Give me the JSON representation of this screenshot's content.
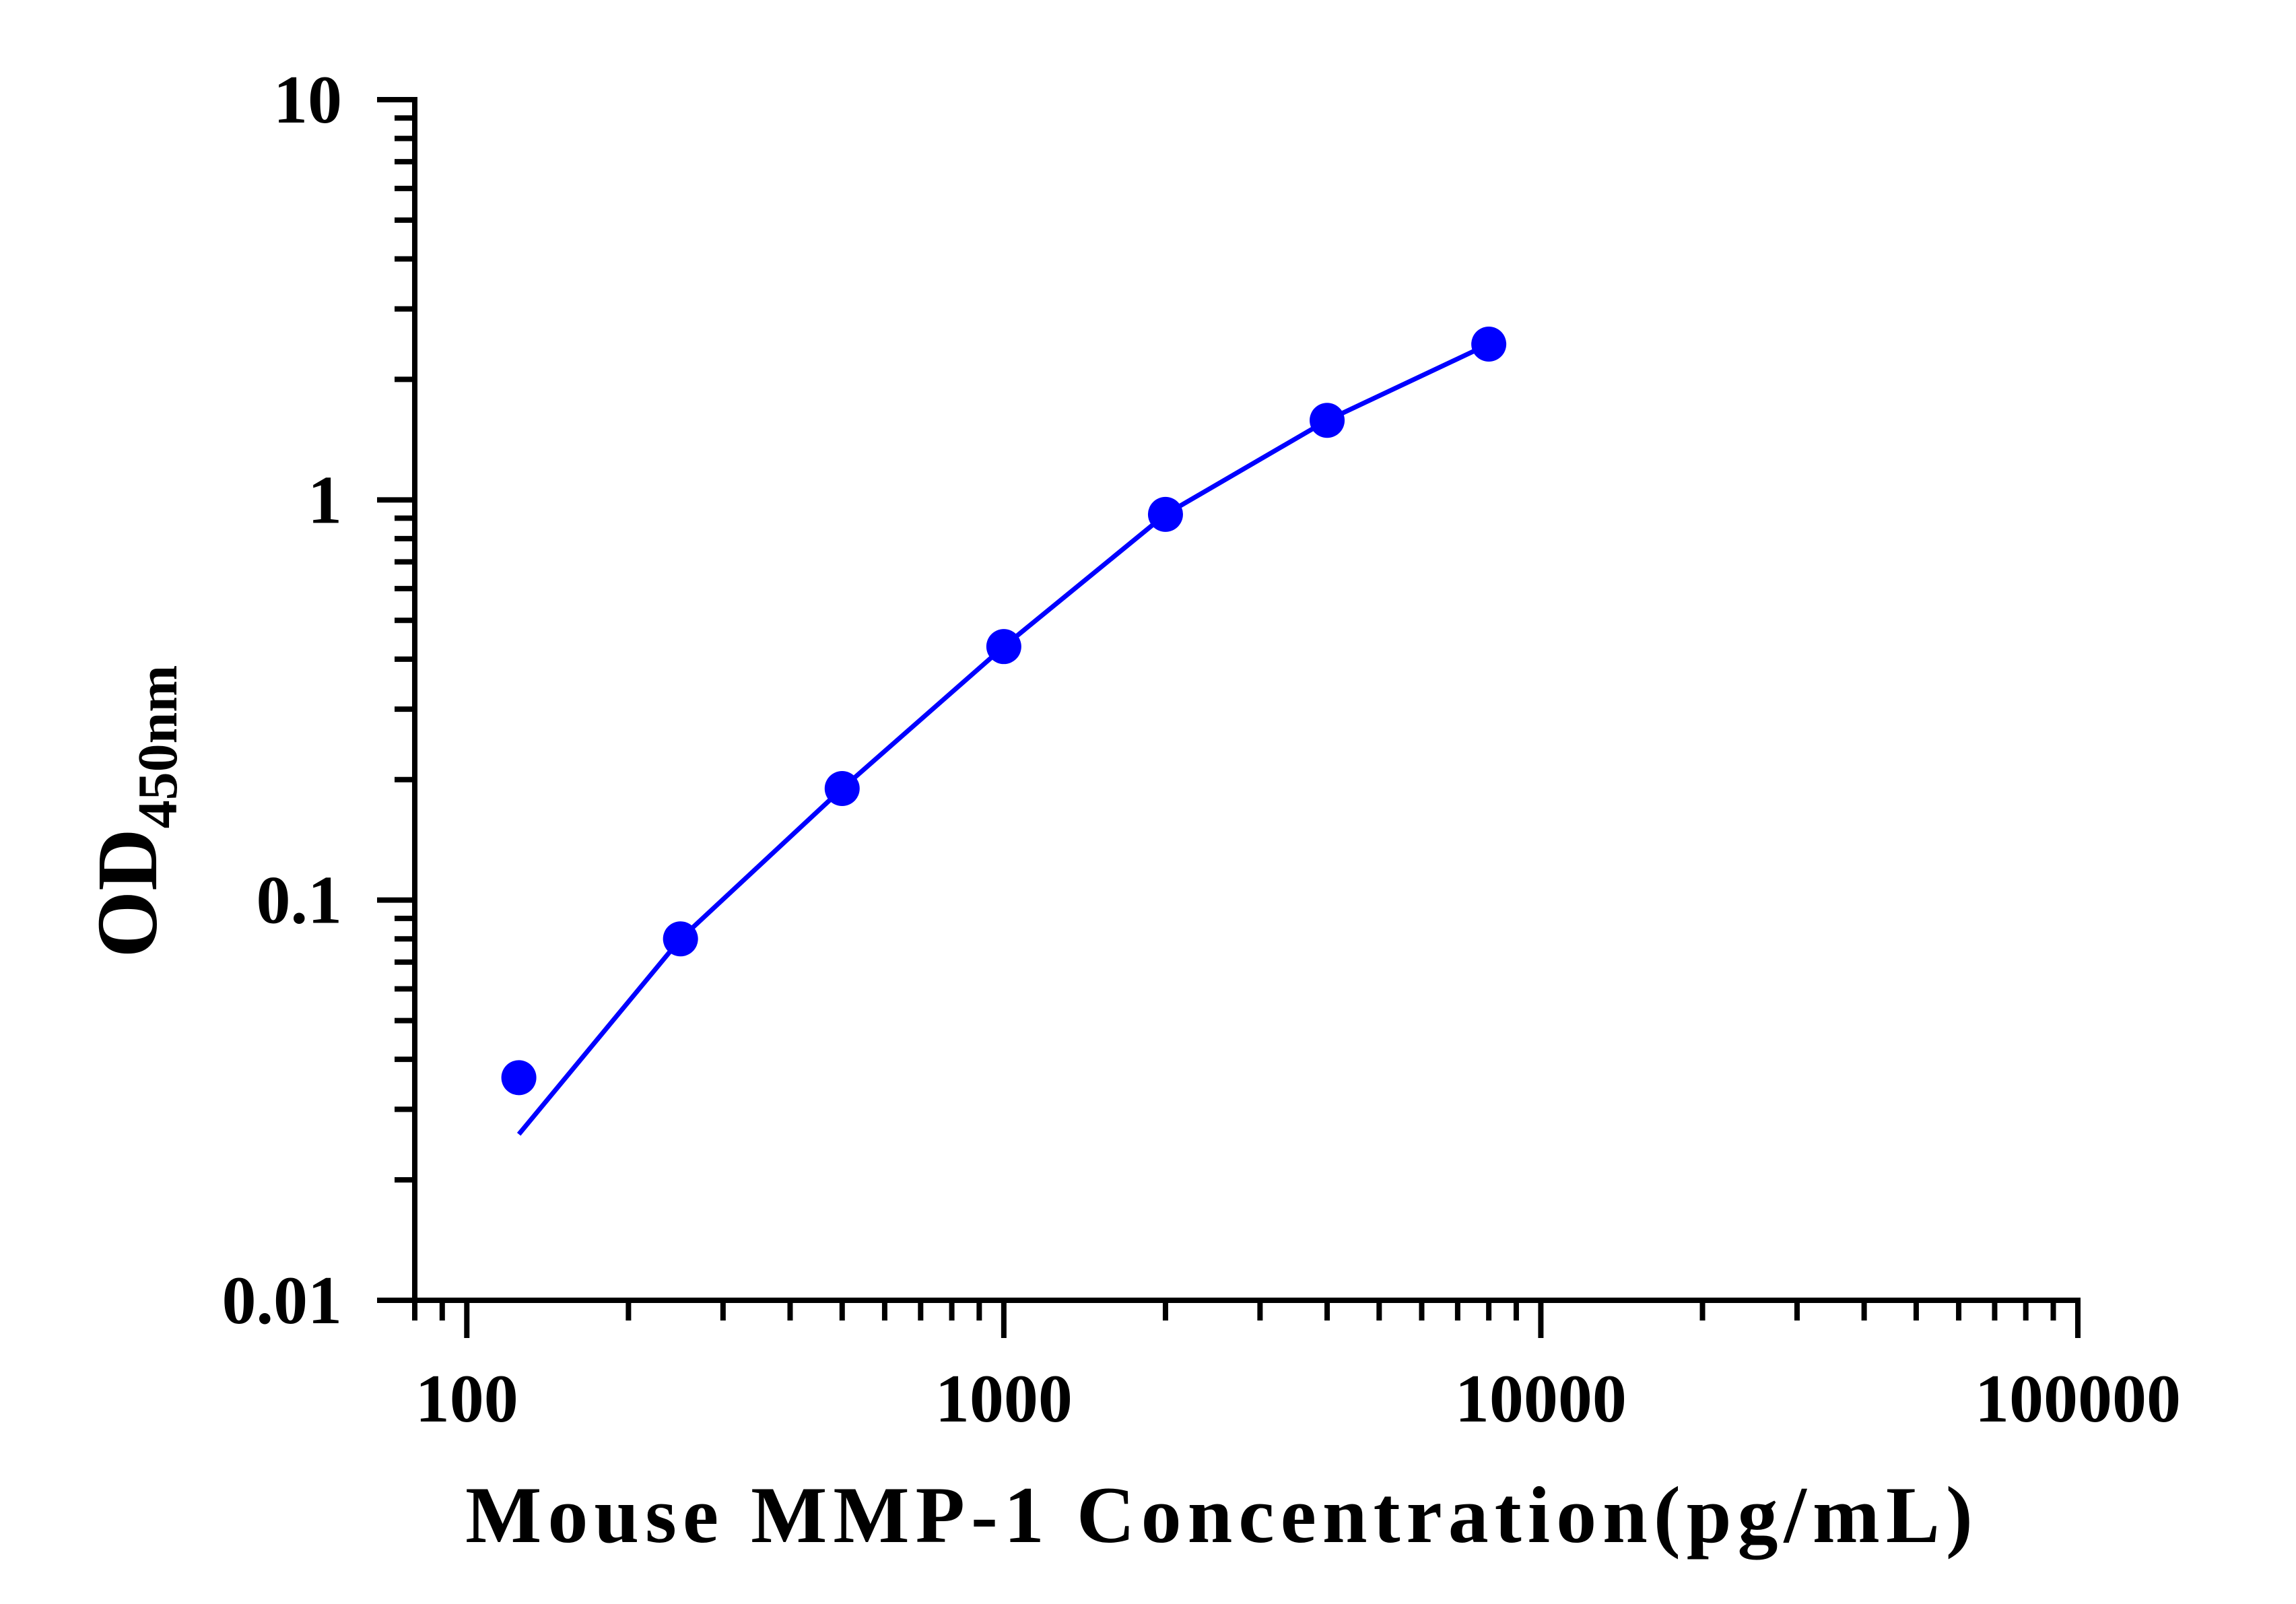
{
  "chart_data": {
    "type": "line",
    "title": "",
    "xlabel": "Mouse MMP-1 Concentration(pg/mL)",
    "ylabel": "OD",
    "ylabel_subscript": "450nm",
    "x_scale": "log",
    "y_scale": "log",
    "xlim": [
      80,
      100000
    ],
    "ylim": [
      0.01,
      10
    ],
    "x_ticks": [
      100,
      1000,
      10000,
      100000
    ],
    "x_tick_labels": [
      "100",
      "1000",
      "10000",
      "100000"
    ],
    "y_ticks": [
      0.01,
      0.1,
      1,
      10
    ],
    "y_tick_labels": [
      "0.01",
      "0.1",
      "1",
      "10"
    ],
    "grid": false,
    "series": [
      {
        "kind": "scatter",
        "x": [
          125,
          250,
          500,
          1000,
          2000,
          4000,
          8000
        ],
        "y": [
          0.036,
          0.08,
          0.19,
          0.43,
          0.92,
          1.58,
          2.45
        ]
      },
      {
        "kind": "fit-line",
        "x": [
          125,
          250,
          500,
          1000,
          2000,
          4000,
          8000
        ],
        "y": [
          0.026,
          0.08,
          0.19,
          0.43,
          0.92,
          1.58,
          2.45
        ]
      }
    ],
    "colors": {
      "series": "#0000ff",
      "axis": "#000000"
    }
  }
}
